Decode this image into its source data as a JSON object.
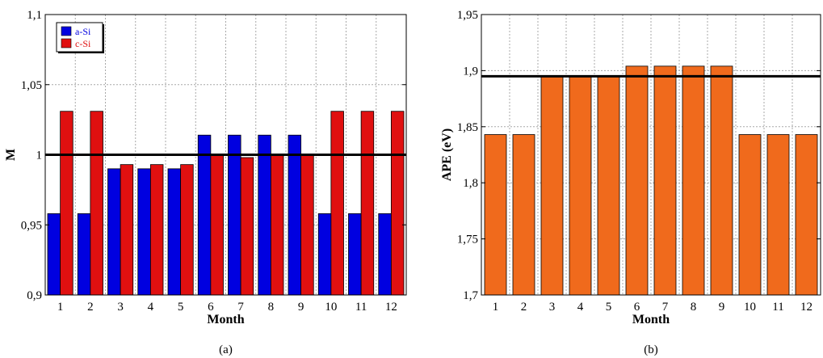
{
  "colors": {
    "a_si": "#0000e0",
    "c_si": "#e01010",
    "ape": "#f06a1c",
    "grid": "#a8a8a8",
    "reference_line": "#000000"
  },
  "chart_data": [
    {
      "type": "bar",
      "panel_label": "(a)",
      "xlabel": "Month",
      "ylabel": "M",
      "categories": [
        "1",
        "2",
        "3",
        "4",
        "5",
        "6",
        "7",
        "8",
        "9",
        "10",
        "11",
        "12"
      ],
      "series": [
        {
          "name": "a-Si",
          "color": "#0000e0",
          "values": [
            0.958,
            0.958,
            0.99,
            0.99,
            0.99,
            1.014,
            1.014,
            1.014,
            1.014,
            0.958,
            0.958,
            0.958
          ]
        },
        {
          "name": "c-Si",
          "color": "#e01010",
          "values": [
            1.031,
            1.031,
            0.993,
            0.993,
            0.993,
            1.0,
            0.998,
            1.0,
            1.0,
            1.031,
            1.031,
            1.031
          ]
        }
      ],
      "ylim": [
        0.9,
        1.1
      ],
      "yticks": [
        0.9,
        0.95,
        1.0,
        1.05,
        1.1
      ],
      "ytick_labels": [
        "0,9",
        "0,95",
        "1",
        "1,05",
        "1,1"
      ],
      "reference_line": 1.0,
      "grid": true,
      "legend_position": "top-left"
    },
    {
      "type": "bar",
      "panel_label": "(b)",
      "xlabel": "Month",
      "ylabel": "APE (eV)",
      "categories": [
        "1",
        "2",
        "3",
        "4",
        "5",
        "6",
        "7",
        "8",
        "9",
        "10",
        "11",
        "12"
      ],
      "series": [
        {
          "color": "#f06a1c",
          "values": [
            1.843,
            1.843,
            1.895,
            1.895,
            1.895,
            1.904,
            1.904,
            1.904,
            1.904,
            1.843,
            1.843,
            1.843
          ]
        }
      ],
      "ylim": [
        1.7,
        1.95
      ],
      "yticks": [
        1.7,
        1.75,
        1.8,
        1.85,
        1.9,
        1.95
      ],
      "ytick_labels": [
        "1,7",
        "1,75",
        "1,8",
        "1,85",
        "1,9",
        "1,95"
      ],
      "reference_line": 1.895,
      "grid": true
    }
  ]
}
